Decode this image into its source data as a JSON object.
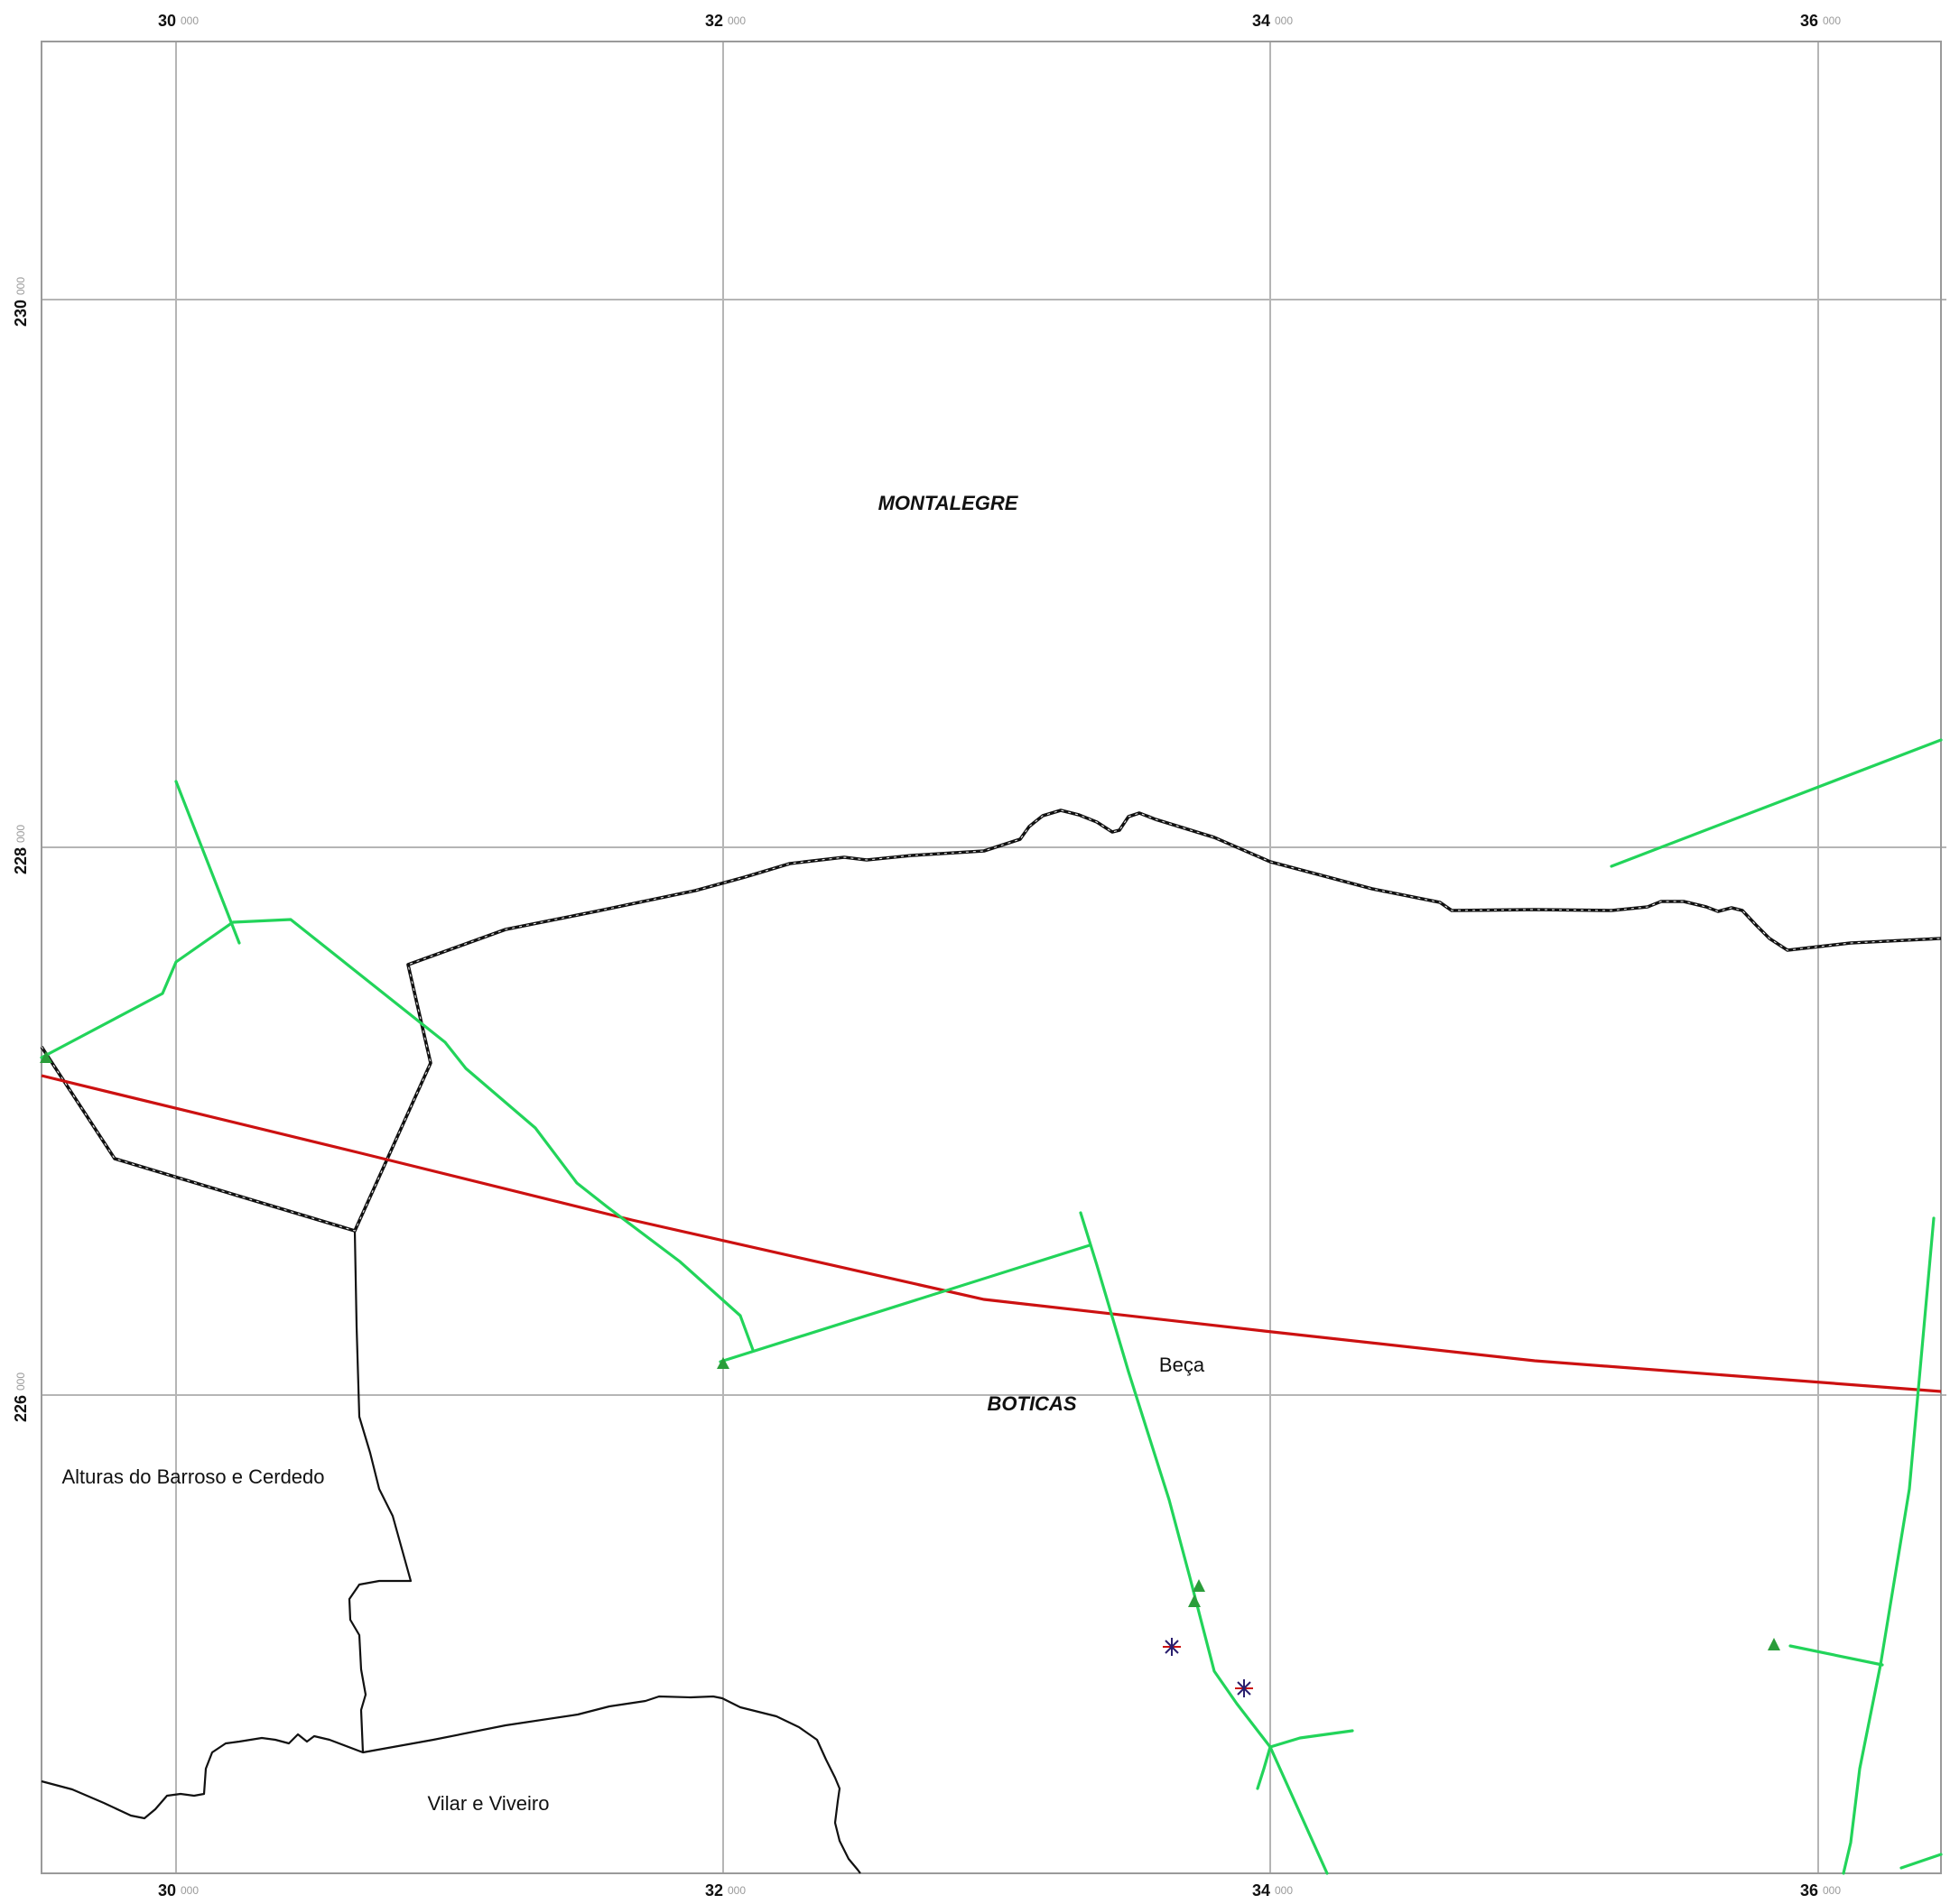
{
  "map": {
    "grid": {
      "x_ticks": [
        {
          "major": "30",
          "minor": "000",
          "value": 30000
        },
        {
          "major": "32",
          "minor": "000",
          "value": 32000
        },
        {
          "major": "34",
          "minor": "000",
          "value": 34000
        },
        {
          "major": "36",
          "minor": "000",
          "value": 36000
        }
      ],
      "y_ticks": [
        {
          "major": "230",
          "minor": "000",
          "value": 230000
        },
        {
          "major": "228",
          "minor": "000",
          "value": 228000
        },
        {
          "major": "226",
          "minor": "000",
          "value": 226000
        }
      ],
      "grid_color": "#b5b5b5"
    },
    "labels": {
      "montalegre": "MONTALEGRE",
      "boticas": "BOTICAS",
      "beca": "Beça",
      "alturas": "Alturas do Barroso e Cerdedo",
      "vilar": "Vilar e Viveiro"
    },
    "colors": {
      "municipal_border": "#111111",
      "parish_border": "#111111",
      "red_line": "#cc1111",
      "green_line": "#22d45a",
      "triangle": "#2a9d3a",
      "star": "#2a1f6e"
    },
    "symbols": {
      "triangles": "triangle-marker",
      "stars": "asterisk-marker"
    }
  }
}
